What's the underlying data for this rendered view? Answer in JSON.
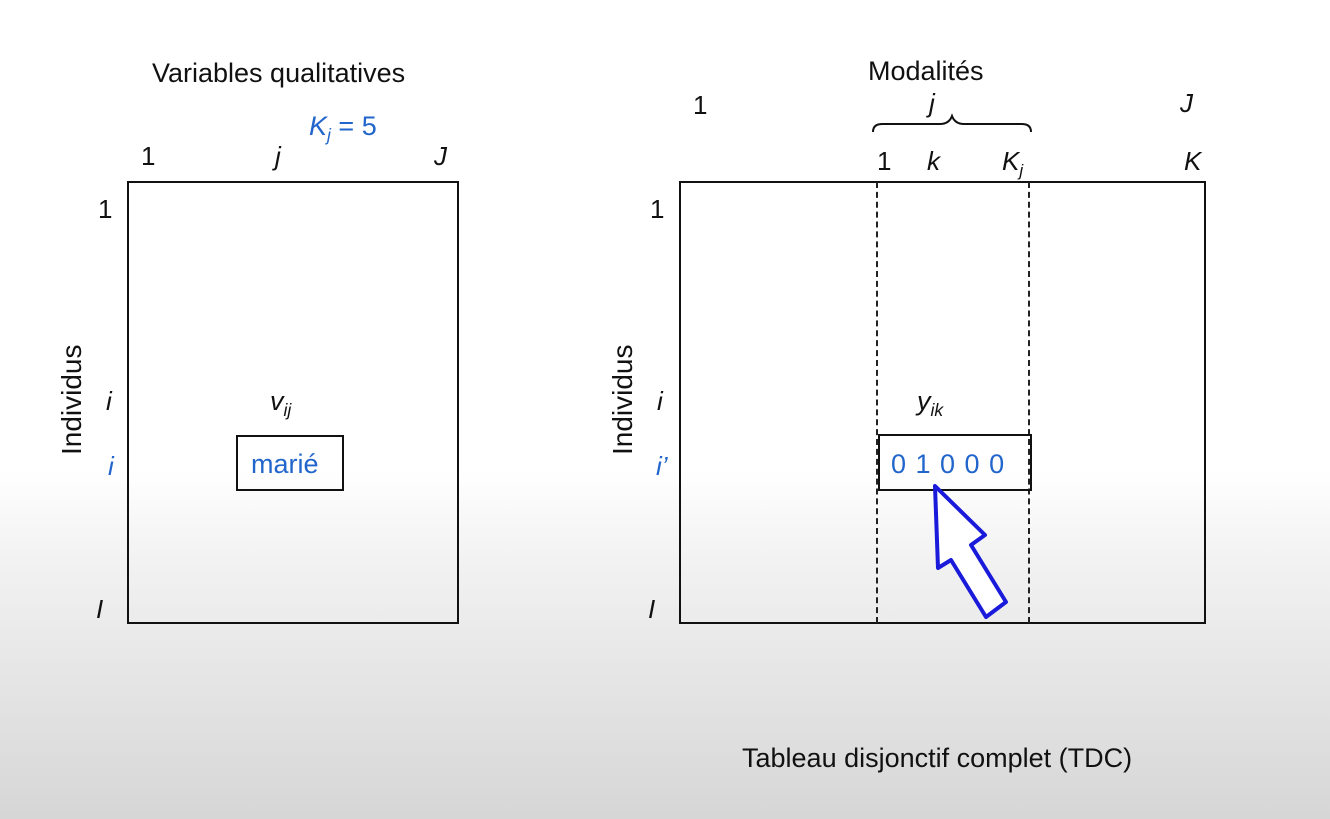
{
  "left_panel": {
    "title": "Variables qualitatives",
    "kj_label": {
      "K": "K",
      "sub": "j",
      "rest": " = 5"
    },
    "col_labels": {
      "first": "1",
      "middle": "j",
      "last": "J"
    },
    "row_labels": {
      "first": "1",
      "middle": "i",
      "highlight": "i",
      "last": "I"
    },
    "axis_label": "Individus",
    "cell_symbol": {
      "main": "v",
      "sub": "ij"
    },
    "cell_value": "marié"
  },
  "right_panel": {
    "title": "Modalités",
    "group_labels": {
      "first": "1",
      "middle": "j",
      "last": "J"
    },
    "col_labels": {
      "first": "1",
      "k": "k",
      "Kj_main": "K",
      "Kj_sub": "j",
      "last": "K"
    },
    "row_labels": {
      "first": "1",
      "middle": "i",
      "highlight": "i’",
      "last": "I"
    },
    "axis_label": "Individus",
    "cell_symbol": {
      "main": "y",
      "sub": "ik"
    },
    "cell_value": "0 1 0 0 0"
  },
  "caption": "Tableau disjonctif complet (TDC)",
  "colors": {
    "accent_blue": "#2266cc",
    "arrow_blue": "#1a1adb",
    "line": "#111111"
  }
}
